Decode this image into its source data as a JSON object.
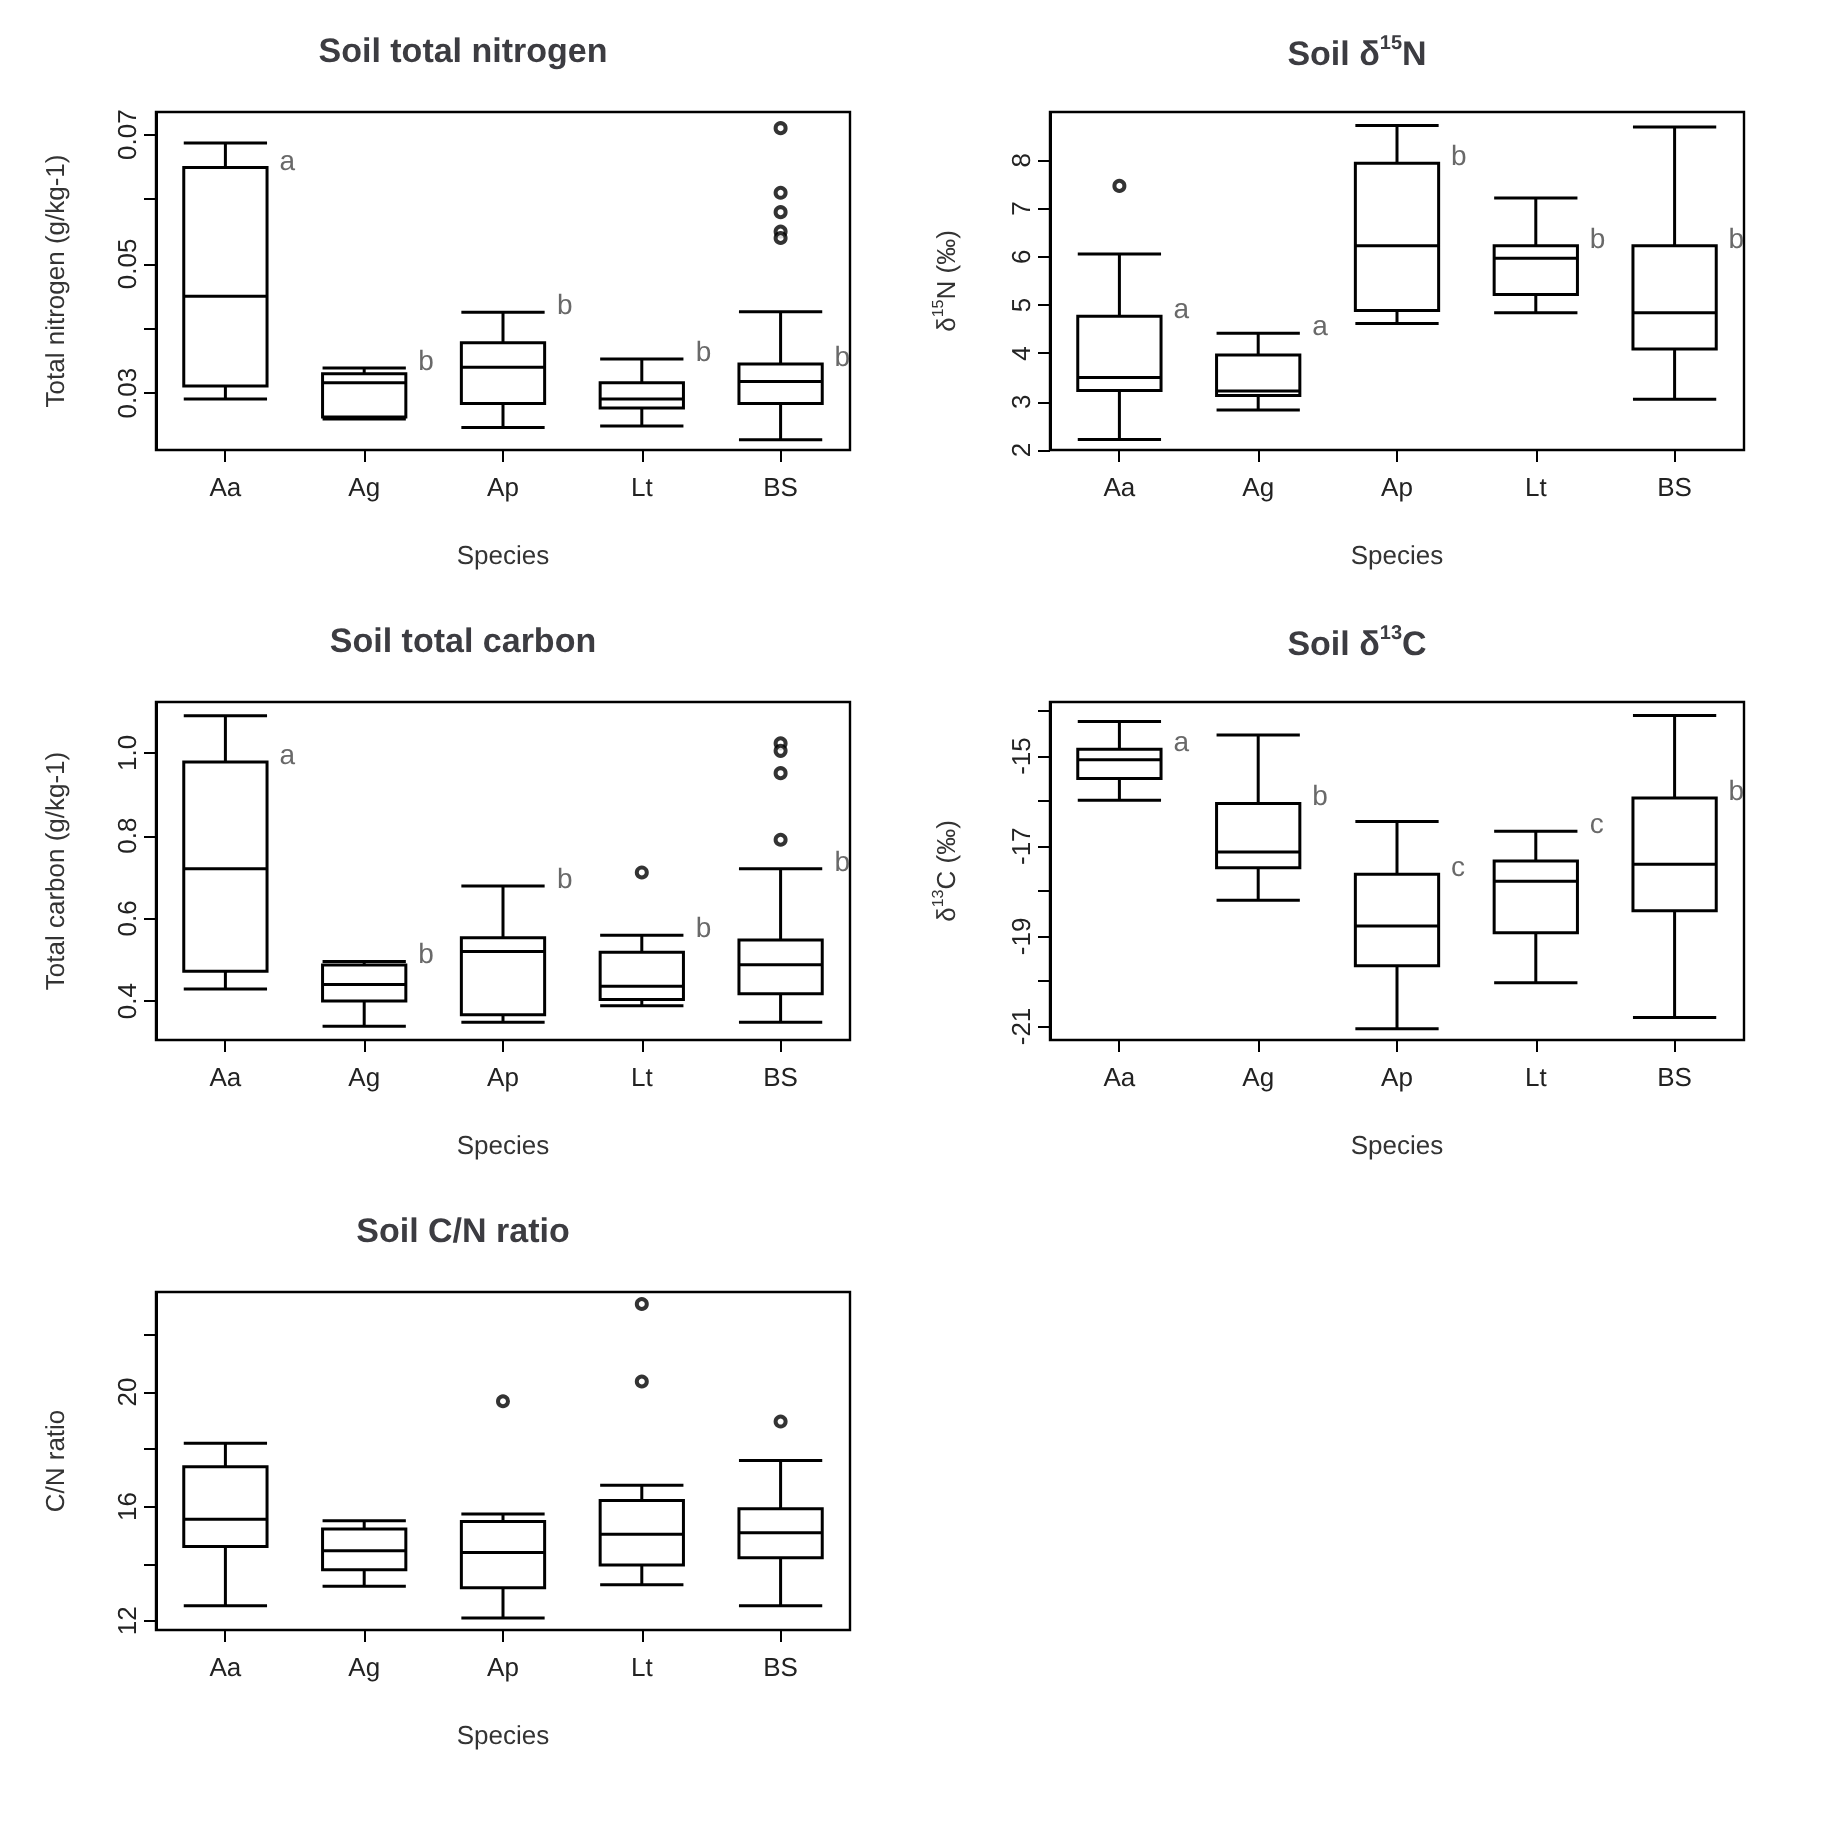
{
  "chart_data": [
    {
      "type": "box",
      "title": "Soil total nitrogen",
      "xlabel": "Species",
      "ylabel": "Total nitrogen (g/kg-1)",
      "categories": [
        "Aa",
        "Ag",
        "Ap",
        "Lt",
        "BS"
      ],
      "boxes": [
        {
          "low": 0.0291,
          "q1": 0.0311,
          "median": 0.045,
          "q3": 0.0649,
          "high": 0.0687
        },
        {
          "low": 0.026,
          "q1": 0.0263,
          "median": 0.0316,
          "q3": 0.033,
          "high": 0.0339
        },
        {
          "low": 0.0247,
          "q1": 0.0284,
          "median": 0.034,
          "q3": 0.0378,
          "high": 0.0425
        },
        {
          "low": 0.0249,
          "q1": 0.0277,
          "median": 0.0291,
          "q3": 0.0316,
          "high": 0.0353
        },
        {
          "low": 0.0228,
          "q1": 0.0284,
          "median": 0.0318,
          "q3": 0.0345,
          "high": 0.0426,
          "outliers": [
            0.071,
            0.061,
            0.058,
            0.055,
            0.054
          ]
        }
      ],
      "ylim": [
        0.0212,
        0.0735
      ],
      "yticks": [
        0.03,
        {
          "value": 0.04,
          "label": null
        },
        0.05,
        {
          "value": 0.06,
          "label": null
        },
        0.07
      ],
      "annotations": [
        {
          "text": "a",
          "x": "Aa",
          "y": 0.0649
        },
        {
          "text": "b",
          "x": "Ag",
          "y": 0.0339
        },
        {
          "text": "b",
          "x": "Ap",
          "y": 0.0425
        },
        {
          "text": "b",
          "x": "Lt",
          "y": 0.0353
        },
        {
          "text": "b",
          "x": "BS",
          "y": 0.0345
        }
      ]
    },
    {
      "type": "box",
      "title": "Soil δ$^{15}$N",
      "xlabel": "Species",
      "ylabel": "δ$^{15}$N (‰)",
      "categories": [
        "Aa",
        "Ag",
        "Ap",
        "Lt",
        "BS"
      ],
      "boxes": [
        {
          "low": 2.22,
          "q1": 3.23,
          "median": 3.5,
          "q3": 4.77,
          "high": 6.06,
          "outliers": [
            7.47
          ]
        },
        {
          "low": 2.83,
          "q1": 3.13,
          "median": 3.22,
          "q3": 3.97,
          "high": 4.42
        },
        {
          "low": 4.62,
          "q1": 4.89,
          "median": 6.23,
          "q3": 7.94,
          "high": 8.72
        },
        {
          "low": 4.84,
          "q1": 5.22,
          "median": 5.97,
          "q3": 6.23,
          "high": 7.22
        },
        {
          "low": 3.05,
          "q1": 4.09,
          "median": 4.84,
          "q3": 6.23,
          "high": 8.69
        }
      ],
      "ylim": [
        2,
        9
      ],
      "yticks": [
        2,
        3,
        4,
        5,
        6,
        7,
        8
      ],
      "annotations": [
        {
          "text": "a",
          "x": "Aa",
          "y": 4.77
        },
        {
          "text": "a",
          "x": "Ag",
          "y": 4.42
        },
        {
          "text": "b",
          "x": "Ap",
          "y": 7.94
        },
        {
          "text": "b",
          "x": "Lt",
          "y": 6.23
        },
        {
          "text": "b",
          "x": "BS",
          "y": 6.23
        }
      ]
    },
    {
      "type": "box",
      "title": "Soil total carbon",
      "xlabel": "Species",
      "ylabel": "Total carbon (g/kg-1)",
      "categories": [
        "Aa",
        "Ag",
        "Ap",
        "Lt",
        "BS"
      ],
      "boxes": [
        {
          "low": 0.429,
          "q1": 0.472,
          "median": 0.72,
          "q3": 0.978,
          "high": 1.09
        },
        {
          "low": 0.339,
          "q1": 0.4,
          "median": 0.44,
          "q3": 0.487,
          "high": 0.496
        },
        {
          "low": 0.349,
          "q1": 0.367,
          "median": 0.52,
          "q3": 0.553,
          "high": 0.678
        },
        {
          "low": 0.389,
          "q1": 0.404,
          "median": 0.436,
          "q3": 0.518,
          "high": 0.559,
          "outliers": [
            0.711
          ]
        },
        {
          "low": 0.349,
          "q1": 0.418,
          "median": 0.488,
          "q3": 0.548,
          "high": 0.72,
          "outliers": [
            1.023,
            1.005,
            0.951,
            0.79
          ]
        }
      ],
      "ylim": [
        0.306,
        1.123
      ],
      "yticks": [
        0.4,
        0.6,
        0.8,
        {
          "value": 1,
          "label": "1.0"
        }
      ],
      "annotations": [
        {
          "text": "a",
          "x": "Aa",
          "y": 0.978
        },
        {
          "text": "b",
          "x": "Ag",
          "y": 0.496
        },
        {
          "text": "b",
          "x": "Ap",
          "y": 0.678
        },
        {
          "text": "b",
          "x": "Lt",
          "y": 0.559
        },
        {
          "text": "b",
          "x": "BS",
          "y": 0.72
        }
      ]
    },
    {
      "type": "box",
      "title": "Soil δ$^{13}$C",
      "xlabel": "Species",
      "ylabel": "δ$^{13}$C (‰)",
      "categories": [
        "Aa",
        "Ag",
        "Ap",
        "Lt",
        "BS"
      ],
      "boxes": [
        {
          "low": -15.98,
          "q1": -15.5,
          "median": -15.08,
          "q3": -14.85,
          "high": -14.23
        },
        {
          "low": -18.2,
          "q1": -17.48,
          "median": -17.13,
          "q3": -16.05,
          "high": -14.53
        },
        {
          "low": -21.05,
          "q1": -19.65,
          "median": -18.77,
          "q3": -17.62,
          "high": -16.45
        },
        {
          "low": -20.03,
          "q1": -18.92,
          "median": -17.78,
          "q3": -17.33,
          "high": -16.67
        },
        {
          "low": -20.8,
          "q1": -18.43,
          "median": -17.4,
          "q3": -15.93,
          "high": -14.1
        }
      ],
      "ylim": [
        -21.3,
        -13.8
      ],
      "yticks": [
        -21,
        {
          "value": -20,
          "label": null
        },
        -19,
        {
          "value": -18,
          "label": null
        },
        -17,
        {
          "value": -16,
          "label": null
        },
        -15,
        {
          "value": -14,
          "label": null
        }
      ],
      "annotations": [
        {
          "text": "a",
          "x": "Aa",
          "y": -14.85
        },
        {
          "text": "b",
          "x": "Ag",
          "y": -16.05
        },
        {
          "text": "c",
          "x": "Ap",
          "y": -17.62
        },
        {
          "text": "c",
          "x": "Lt",
          "y": -16.67
        },
        {
          "text": "b",
          "x": "BS",
          "y": -15.93
        }
      ]
    },
    {
      "type": "box",
      "title": "Soil C/N ratio",
      "xlabel": "Species",
      "ylabel": "C/N ratio",
      "categories": [
        "Aa",
        "Ag",
        "Ap",
        "Lt",
        "BS"
      ],
      "boxes": [
        {
          "low": 12.53,
          "q1": 14.6,
          "median": 15.55,
          "q3": 17.39,
          "high": 18.21
        },
        {
          "low": 13.21,
          "q1": 13.79,
          "median": 14.45,
          "q3": 15.21,
          "high": 15.5
        },
        {
          "low": 12.1,
          "q1": 13.16,
          "median": 14.39,
          "q3": 15.47,
          "high": 15.74,
          "outliers": [
            19.68
          ]
        },
        {
          "low": 13.26,
          "q1": 13.95,
          "median": 15.03,
          "q3": 16.21,
          "high": 16.74,
          "outliers": [
            23.08,
            20.37
          ]
        },
        {
          "low": 12.53,
          "q1": 14.21,
          "median": 15.08,
          "q3": 15.92,
          "high": 17.61,
          "outliers": [
            18.97
          ]
        }
      ],
      "ylim": [
        11.68,
        23.5
      ],
      "yticks": [
        12,
        {
          "value": 14,
          "label": null
        },
        16,
        {
          "value": 18,
          "label": null
        },
        20,
        {
          "value": 22,
          "label": null
        }
      ]
    }
  ]
}
